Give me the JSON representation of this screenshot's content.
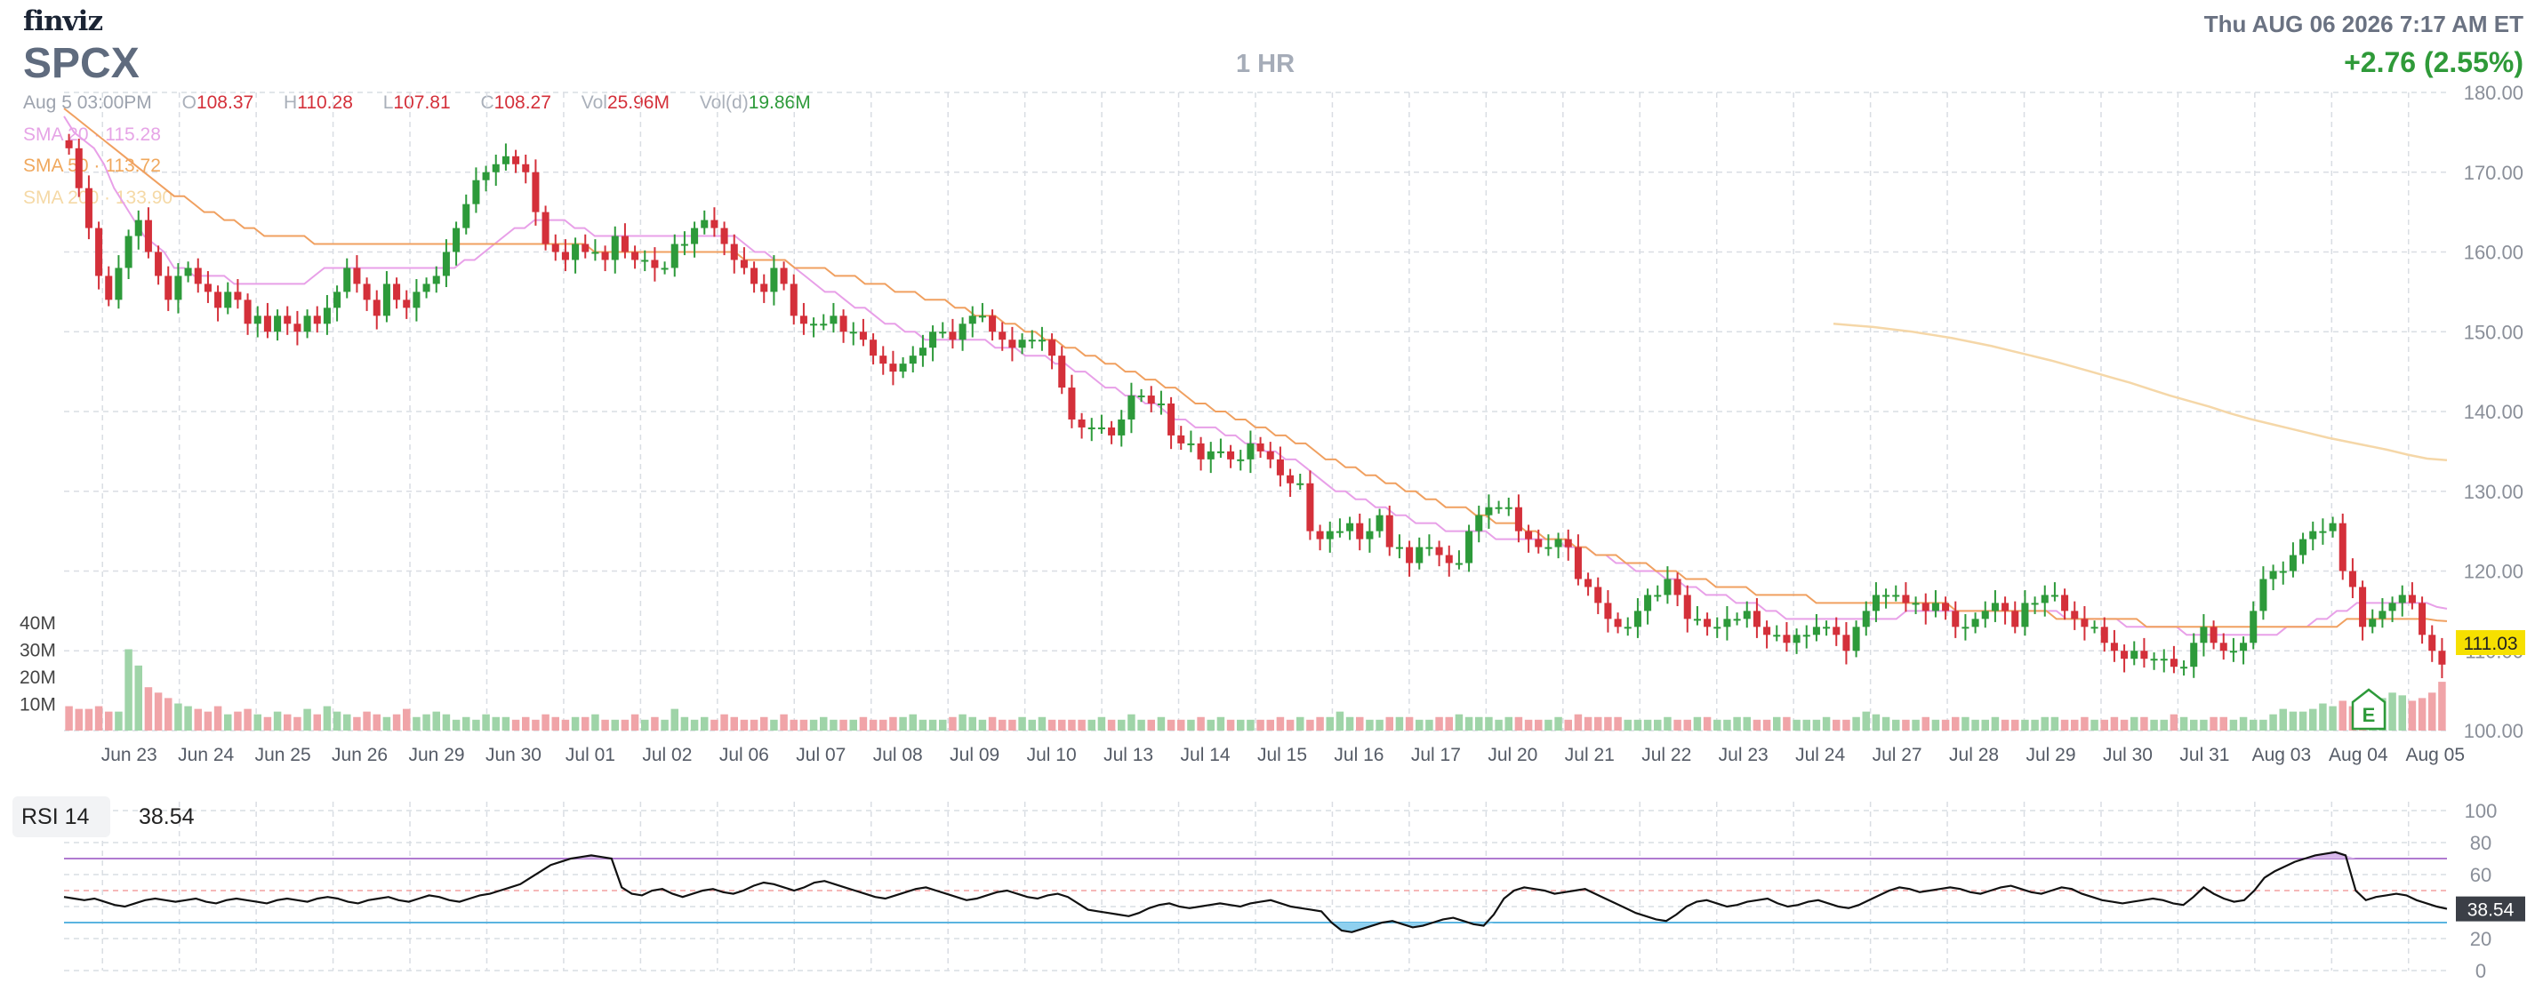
{
  "header": {
    "logo": "finviz",
    "ticker": "SPCX",
    "timeframe": "1 HR",
    "datetime": "Thu AUG 06 2026 7:17 AM ET",
    "change": "+2.76 (2.55%)"
  },
  "ohlc": {
    "date": "Aug 5 03:00PM",
    "o_label": "O",
    "o": "108.37",
    "h_label": "H",
    "h": "110.28",
    "l_label": "L",
    "l": "107.81",
    "c_label": "C",
    "c": "108.27",
    "vol_label": "Vol",
    "vol": "25.96M",
    "vold_label": "Vol(d)",
    "vold": "19.86M"
  },
  "sma": {
    "sma20": "SMA 20 · 115.28",
    "sma50": "SMA 50 · 113.72",
    "sma200": "SMA 200 · 133.90"
  },
  "rsi": {
    "label": "RSI 14",
    "value": "38.54"
  },
  "colors": {
    "up": "#2d9a3a",
    "down": "#d4303a",
    "vol_up": "#9fd4a8",
    "vol_down": "#f0a4a8",
    "sma20": "#e8a0e8",
    "sma50": "#f0a060",
    "sma200": "#f5d7a8",
    "grid": "#d9dde3",
    "axis_text": "#8a8f99",
    "price_tag": "#f6e000",
    "rsi_line": "#111111",
    "rsi_top": "#b07ad0",
    "rsi_bottom": "#5ab4e0",
    "rsi_fill": "#8fd0ef"
  },
  "chart_data": {
    "type": "candlestick",
    "price_range": [
      100,
      180
    ],
    "y_ticks": [
      "180.00",
      "170.00",
      "160.00",
      "150.00",
      "140.00",
      "130.00",
      "120.00",
      "110.00",
      "100.00"
    ],
    "volume_ticks": [
      "40M",
      "30M",
      "20M",
      "10M"
    ],
    "volume_range": [
      0,
      40
    ],
    "current_price": "111.03",
    "x_labels": [
      "Jun 23",
      "Jun 24",
      "Jun 25",
      "Jun 26",
      "Jun 29",
      "Jun 30",
      "Jul 01",
      "Jul 02",
      "Jul 06",
      "Jul 07",
      "Jul 08",
      "Jul 09",
      "Jul 10",
      "Jul 13",
      "Jul 14",
      "Jul 15",
      "Jul 16",
      "Jul 17",
      "Jul 20",
      "Jul 21",
      "Jul 22",
      "Jul 23",
      "Jul 24",
      "Jul 27",
      "Jul 28",
      "Jul 29",
      "Jul 30",
      "Jul 31",
      "Aug 03",
      "Aug 04",
      "Aug 05"
    ],
    "earnings_marker": "E",
    "closes": [
      173,
      168,
      163,
      157,
      154,
      158,
      162,
      164,
      160,
      157,
      154,
      157,
      158,
      156,
      155,
      153,
      155,
      154,
      151,
      152,
      150,
      152,
      151,
      150,
      152,
      151,
      153,
      155,
      158,
      156,
      154,
      152,
      156,
      154,
      153,
      155,
      156,
      157,
      160,
      163,
      166,
      169,
      170,
      171,
      172,
      171,
      170,
      165,
      161,
      160,
      159,
      161,
      160,
      160,
      159,
      162,
      160,
      159,
      159,
      158,
      158,
      161,
      161,
      163,
      164,
      163,
      161,
      159,
      158,
      156,
      155,
      158,
      156,
      152,
      151,
      151,
      151,
      152,
      150,
      150,
      149,
      147,
      146,
      145,
      146,
      147,
      148,
      150,
      150,
      149,
      151,
      152,
      152,
      150,
      149,
      148,
      149,
      149,
      149,
      147,
      143,
      139,
      138,
      138,
      138,
      137,
      139,
      142,
      142,
      141,
      141,
      137,
      136,
      136,
      134,
      135,
      135,
      134,
      134,
      136,
      135,
      134,
      132,
      131,
      131,
      125,
      124,
      125,
      125,
      126,
      124,
      125,
      127,
      123,
      123,
      121,
      123,
      123,
      122,
      121,
      121,
      125,
      127,
      128,
      128,
      128,
      125,
      124,
      123,
      123,
      124,
      123,
      119,
      118,
      116,
      114,
      113,
      113,
      115,
      117,
      117,
      119,
      117,
      114,
      114,
      113,
      113,
      114,
      114,
      115,
      113,
      112,
      112,
      111,
      112,
      112,
      113,
      113,
      112,
      110,
      113,
      115,
      117,
      117,
      117,
      116,
      116,
      115,
      116,
      115,
      113,
      113,
      114,
      115,
      116,
      115,
      113,
      116,
      116,
      117,
      117,
      115,
      114,
      113,
      113,
      111,
      110,
      109,
      110,
      109,
      109,
      109,
      108,
      108,
      111,
      113,
      111,
      110,
      110,
      111,
      115,
      119,
      120,
      120,
      122,
      124,
      125,
      125,
      126,
      120,
      118,
      113,
      114,
      115,
      116,
      117,
      116,
      112,
      110,
      108.27
    ],
    "volumes": [
      9,
      8,
      8,
      9,
      7,
      7,
      30,
      24,
      16,
      14,
      12,
      10,
      9,
      8,
      7,
      9,
      6,
      7,
      8,
      6,
      5,
      7,
      6,
      5,
      8,
      6,
      9,
      7,
      6,
      5,
      7,
      6,
      5,
      6,
      8,
      5,
      6,
      7,
      6,
      4,
      5,
      4,
      6,
      5,
      5,
      4,
      5,
      4,
      6,
      5,
      4,
      5,
      5,
      6,
      4,
      4,
      4,
      6,
      4,
      5,
      4,
      8,
      5,
      4,
      5,
      4,
      6,
      5,
      4,
      4,
      5,
      4,
      6,
      4,
      4,
      4,
      5,
      4,
      4,
      4,
      5,
      4,
      4,
      5,
      5,
      6,
      4,
      4,
      4,
      5,
      6,
      5,
      4,
      5,
      4,
      4,
      5,
      4,
      5,
      4,
      4,
      4,
      4,
      4,
      5,
      4,
      4,
      6,
      4,
      4,
      5,
      4,
      4,
      4,
      5,
      4,
      5,
      4,
      4,
      4,
      4,
      4,
      5,
      4,
      5,
      4,
      5,
      5,
      7,
      5,
      5,
      4,
      4,
      5,
      5,
      5,
      4,
      4,
      5,
      5,
      6,
      5,
      5,
      5,
      4,
      5,
      5,
      4,
      4,
      4,
      5,
      4,
      6,
      5,
      5,
      5,
      5,
      4,
      4,
      4,
      4,
      5,
      4,
      4,
      5,
      5,
      4,
      4,
      5,
      5,
      4,
      4,
      5,
      5,
      4,
      4,
      4,
      5,
      4,
      4,
      5,
      7,
      6,
      5,
      4,
      4,
      4,
      5,
      4,
      4,
      5,
      5,
      4,
      4,
      5,
      4,
      4,
      4,
      4,
      5,
      5,
      4,
      4,
      5,
      4,
      4,
      5,
      4,
      5,
      5,
      4,
      4,
      6,
      5,
      4,
      4,
      5,
      5,
      4,
      5,
      4,
      4,
      6,
      8,
      7,
      7,
      8,
      10,
      9,
      11,
      9,
      7,
      9,
      12,
      14,
      13,
      11,
      12,
      14,
      18,
      20,
      25.96
    ],
    "sma20_values": [
      177,
      175,
      174,
      173,
      171,
      168,
      166,
      164,
      162,
      161,
      160,
      158,
      158,
      157,
      157,
      157,
      157,
      156,
      156,
      156,
      156,
      156,
      156,
      156,
      156,
      157,
      158,
      158,
      158,
      158,
      158,
      158,
      158,
      158,
      158,
      158,
      158,
      158,
      158,
      158,
      159,
      159,
      160,
      161,
      162,
      163,
      163,
      164,
      164,
      164,
      164,
      163,
      163,
      162,
      162,
      162,
      162,
      162,
      162,
      162,
      162,
      162,
      162,
      162,
      162,
      162,
      162,
      162,
      161,
      160,
      160,
      159,
      159,
      158,
      157,
      156,
      155,
      155,
      154,
      153,
      153,
      152,
      151,
      151,
      150,
      150,
      149,
      149,
      149,
      149,
      149,
      149,
      149,
      148,
      148,
      148,
      147,
      147,
      147,
      146,
      146,
      145,
      145,
      144,
      143,
      143,
      142,
      142,
      141,
      141,
      140,
      139,
      139,
      138,
      138,
      138,
      137,
      137,
      136,
      136,
      135,
      135,
      134,
      134,
      133,
      132,
      131,
      130,
      130,
      129,
      129,
      128,
      128,
      127,
      127,
      126,
      126,
      126,
      125,
      125,
      125,
      125,
      125,
      124,
      124,
      124,
      124,
      124,
      124,
      124,
      123,
      123,
      123,
      122,
      122,
      121,
      121,
      120,
      120,
      120,
      119,
      119,
      118,
      118,
      117,
      117,
      117,
      116,
      116,
      116,
      115,
      115,
      114,
      114,
      114,
      114,
      114,
      114,
      114,
      114,
      114,
      114,
      114,
      114,
      115,
      115,
      115,
      115,
      115,
      115,
      115,
      115,
      115,
      115,
      115,
      115,
      115,
      115,
      115,
      115,
      114,
      114,
      114,
      114,
      114,
      114,
      113,
      113,
      113,
      113,
      113,
      113,
      112,
      112,
      112,
      112,
      112,
      112,
      112,
      112,
      112,
      112,
      113,
      113,
      113,
      114,
      114,
      115,
      115,
      116,
      116,
      116,
      116,
      116,
      116,
      116,
      116,
      115.5,
      115.28
    ],
    "sma50_values": [
      178,
      177,
      176,
      175,
      174,
      173,
      172,
      171,
      170,
      169,
      168,
      167,
      167,
      166,
      165,
      165,
      164,
      164,
      163,
      163,
      162,
      162,
      162,
      162,
      162,
      161,
      161,
      161,
      161,
      161,
      161,
      161,
      161,
      161,
      161,
      161,
      161,
      161,
      161,
      161,
      161,
      161,
      161,
      161,
      161,
      161,
      161,
      161,
      161,
      161,
      161,
      161,
      161,
      160,
      160,
      160,
      160,
      160,
      160,
      160,
      160,
      160,
      160,
      160,
      160,
      160,
      160,
      160,
      159,
      159,
      159,
      159,
      159,
      158,
      158,
      158,
      158,
      157,
      157,
      157,
      156,
      156,
      156,
      155,
      155,
      155,
      154,
      154,
      154,
      153,
      153,
      152,
      152,
      152,
      151,
      151,
      150,
      150,
      149,
      149,
      148,
      148,
      147,
      147,
      146,
      146,
      145,
      145,
      144,
      144,
      143,
      143,
      142,
      141,
      141,
      140,
      140,
      139,
      139,
      138,
      138,
      137,
      137,
      136,
      136,
      135,
      134,
      134,
      133,
      133,
      132,
      132,
      131,
      131,
      130,
      130,
      129,
      129,
      128,
      128,
      128,
      127,
      127,
      126,
      126,
      126,
      125,
      125,
      124,
      124,
      124,
      123,
      123,
      122,
      122,
      122,
      121,
      121,
      121,
      120,
      120,
      120,
      119,
      119,
      119,
      118,
      118,
      118,
      118,
      117,
      117,
      117,
      117,
      117,
      117,
      116,
      116,
      116,
      116,
      116,
      116,
      116,
      116,
      116,
      116,
      116,
      116,
      116,
      116,
      115,
      115,
      115,
      115,
      115,
      115,
      115,
      115,
      115,
      115,
      114,
      114,
      114,
      114,
      114,
      114,
      114,
      114,
      114,
      113,
      113,
      113,
      113,
      113,
      113,
      113,
      113,
      113,
      113,
      113,
      113,
      113,
      113,
      113,
      113,
      113,
      113,
      113,
      113,
      114,
      114,
      114,
      114,
      114,
      114,
      114,
      114,
      114,
      113.8,
      113.72
    ],
    "sma200_values": [
      151,
      150.8,
      150.6,
      150.3,
      150,
      149.6,
      149.2,
      148.7,
      148.2,
      147.6,
      147,
      146.4,
      145.7,
      145,
      144.3,
      143.6,
      142.8,
      142,
      141.3,
      140.6,
      139.8,
      139.1,
      138.5,
      137.9,
      137.3,
      136.7,
      136.2,
      135.7,
      135.2,
      134.6,
      134.1,
      133.9
    ],
    "rsi_range": [
      0,
      100
    ],
    "rsi_ticks": [
      "100",
      "80",
      "60",
      "40",
      "20",
      "0"
    ],
    "rsi_overbought": 70,
    "rsi_oversold": 30,
    "rsi_values": [
      46,
      45,
      44,
      45,
      43,
      41,
      40,
      42,
      44,
      45,
      44,
      43,
      44,
      45,
      43,
      42,
      44,
      45,
      44,
      43,
      42,
      44,
      45,
      44,
      43,
      45,
      46,
      45,
      43,
      42,
      44,
      45,
      46,
      44,
      43,
      45,
      47,
      46,
      44,
      43,
      45,
      47,
      48,
      50,
      52,
      54,
      58,
      62,
      66,
      68,
      70,
      71,
      72,
      71,
      70,
      52,
      48,
      47,
      50,
      51,
      48,
      46,
      48,
      50,
      51,
      49,
      48,
      50,
      53,
      55,
      54,
      52,
      50,
      52,
      55,
      56,
      54,
      52,
      50,
      48,
      46,
      45,
      47,
      49,
      51,
      52,
      50,
      48,
      46,
      44,
      45,
      47,
      49,
      50,
      48,
      46,
      45,
      47,
      48,
      46,
      42,
      38,
      37,
      36,
      35,
      34,
      36,
      39,
      41,
      42,
      40,
      39,
      40,
      41,
      42,
      41,
      40,
      42,
      43,
      44,
      42,
      40,
      39,
      38,
      37,
      30,
      25,
      24,
      26,
      28,
      30,
      31,
      29,
      27,
      28,
      30,
      32,
      33,
      31,
      29,
      28,
      35,
      45,
      50,
      52,
      51,
      50,
      48,
      49,
      50,
      51,
      48,
      45,
      42,
      39,
      36,
      34,
      32,
      31,
      35,
      40,
      43,
      44,
      42,
      40,
      41,
      43,
      44,
      45,
      42,
      40,
      41,
      43,
      44,
      42,
      40,
      39,
      41,
      44,
      47,
      50,
      52,
      51,
      49,
      50,
      51,
      52,
      51,
      49,
      48,
      50,
      52,
      53,
      51,
      49,
      48,
      50,
      52,
      51,
      48,
      46,
      44,
      43,
      42,
      43,
      44,
      45,
      44,
      42,
      41,
      46,
      52,
      48,
      45,
      43,
      44,
      50,
      58,
      62,
      65,
      68,
      70,
      72,
      73,
      74,
      72,
      50,
      44,
      46,
      47,
      48,
      47,
      44,
      42,
      40,
      38.54
    ]
  }
}
